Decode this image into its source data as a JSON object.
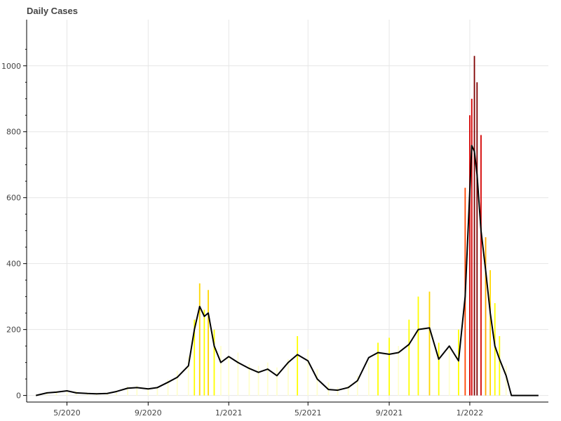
{
  "chart_data": {
    "type": "bar",
    "title": "Daily Cases",
    "xlabel": "",
    "ylabel": "",
    "grid": true,
    "x_range": [
      "2020-03-01",
      "2022-04-30"
    ],
    "ylim": [
      -20,
      1140
    ],
    "y_ticks": [
      0,
      200,
      400,
      600,
      800,
      1000
    ],
    "x_ticks": [
      {
        "date": "2020-05-01",
        "label": "5/2020"
      },
      {
        "date": "2020-09-01",
        "label": "9/2020"
      },
      {
        "date": "2021-01-01",
        "label": "1/2021"
      },
      {
        "date": "2021-05-01",
        "label": "5/2021"
      },
      {
        "date": "2021-09-01",
        "label": "9/2021"
      },
      {
        "date": "2022-01-01",
        "label": "1/2022"
      }
    ],
    "bar_colormap": [
      "#ffffcc",
      "#ffff00",
      "#ffd700",
      "#ffa500",
      "#ff4500",
      "#d40000",
      "#800000"
    ],
    "series": [
      {
        "type": "bar",
        "points": [
          [
            "2020-03-15",
            2
          ],
          [
            "2020-04-01",
            8
          ],
          [
            "2020-04-15",
            12
          ],
          [
            "2020-05-01",
            10
          ],
          [
            "2020-05-15",
            14
          ],
          [
            "2020-06-01",
            6
          ],
          [
            "2020-06-15",
            5
          ],
          [
            "2020-07-01",
            4
          ],
          [
            "2020-07-15",
            8
          ],
          [
            "2020-08-01",
            28
          ],
          [
            "2020-08-15",
            30
          ],
          [
            "2020-09-01",
            22
          ],
          [
            "2020-09-15",
            24
          ],
          [
            "2020-10-01",
            48
          ],
          [
            "2020-10-15",
            75
          ],
          [
            "2020-11-01",
            120
          ],
          [
            "2020-11-10",
            230
          ],
          [
            "2020-11-18",
            340
          ],
          [
            "2020-11-25",
            260
          ],
          [
            "2020-12-01",
            320
          ],
          [
            "2020-12-10",
            200
          ],
          [
            "2020-12-20",
            150
          ],
          [
            "2021-01-01",
            120
          ],
          [
            "2021-01-15",
            130
          ],
          [
            "2021-02-01",
            95
          ],
          [
            "2021-02-15",
            90
          ],
          [
            "2021-03-01",
            100
          ],
          [
            "2021-03-15",
            85
          ],
          [
            "2021-04-01",
            110
          ],
          [
            "2021-04-15",
            180
          ],
          [
            "2021-05-01",
            140
          ],
          [
            "2021-05-15",
            80
          ],
          [
            "2021-06-01",
            40
          ],
          [
            "2021-06-15",
            25
          ],
          [
            "2021-07-01",
            30
          ],
          [
            "2021-07-15",
            60
          ],
          [
            "2021-08-01",
            100
          ],
          [
            "2021-08-15",
            160
          ],
          [
            "2021-09-01",
            175
          ],
          [
            "2021-09-15",
            150
          ],
          [
            "2021-10-01",
            230
          ],
          [
            "2021-10-15",
            300
          ],
          [
            "2021-11-01",
            315
          ],
          [
            "2021-11-15",
            160
          ],
          [
            "2021-12-01",
            140
          ],
          [
            "2021-12-15",
            200
          ],
          [
            "2021-12-25",
            630
          ],
          [
            "2022-01-01",
            850
          ],
          [
            "2022-01-04",
            900
          ],
          [
            "2022-01-08",
            1030
          ],
          [
            "2022-01-12",
            950
          ],
          [
            "2022-01-18",
            790
          ],
          [
            "2022-01-25",
            480
          ],
          [
            "2022-02-01",
            380
          ],
          [
            "2022-02-08",
            280
          ],
          [
            "2022-02-15",
            180
          ],
          [
            "2022-02-25",
            90
          ],
          [
            "2022-03-05",
            0
          ],
          [
            "2022-03-20",
            0
          ],
          [
            "2022-04-15",
            0
          ]
        ]
      },
      {
        "type": "line",
        "color": "#000000",
        "points": [
          [
            "2020-03-15",
            0
          ],
          [
            "2020-04-01",
            8
          ],
          [
            "2020-04-15",
            10
          ],
          [
            "2020-05-01",
            14
          ],
          [
            "2020-05-15",
            8
          ],
          [
            "2020-06-01",
            6
          ],
          [
            "2020-06-15",
            5
          ],
          [
            "2020-07-01",
            6
          ],
          [
            "2020-07-15",
            12
          ],
          [
            "2020-08-01",
            22
          ],
          [
            "2020-08-15",
            24
          ],
          [
            "2020-09-01",
            20
          ],
          [
            "2020-09-15",
            24
          ],
          [
            "2020-10-01",
            40
          ],
          [
            "2020-10-15",
            55
          ],
          [
            "2020-11-01",
            90
          ],
          [
            "2020-11-10",
            200
          ],
          [
            "2020-11-18",
            270
          ],
          [
            "2020-11-25",
            240
          ],
          [
            "2020-12-01",
            250
          ],
          [
            "2020-12-10",
            150
          ],
          [
            "2020-12-20",
            100
          ],
          [
            "2021-01-01",
            118
          ],
          [
            "2021-01-15",
            100
          ],
          [
            "2021-02-01",
            82
          ],
          [
            "2021-02-15",
            70
          ],
          [
            "2021-03-01",
            80
          ],
          [
            "2021-03-15",
            60
          ],
          [
            "2021-04-01",
            100
          ],
          [
            "2021-04-15",
            124
          ],
          [
            "2021-05-01",
            105
          ],
          [
            "2021-05-15",
            50
          ],
          [
            "2021-06-01",
            18
          ],
          [
            "2021-06-15",
            16
          ],
          [
            "2021-07-01",
            24
          ],
          [
            "2021-07-15",
            45
          ],
          [
            "2021-08-01",
            115
          ],
          [
            "2021-08-15",
            130
          ],
          [
            "2021-09-01",
            125
          ],
          [
            "2021-09-15",
            130
          ],
          [
            "2021-10-01",
            155
          ],
          [
            "2021-10-15",
            200
          ],
          [
            "2021-11-01",
            205
          ],
          [
            "2021-11-15",
            110
          ],
          [
            "2021-12-01",
            150
          ],
          [
            "2021-12-15",
            105
          ],
          [
            "2021-12-25",
            300
          ],
          [
            "2022-01-01",
            620
          ],
          [
            "2022-01-04",
            758
          ],
          [
            "2022-01-08",
            740
          ],
          [
            "2022-01-12",
            670
          ],
          [
            "2022-01-18",
            500
          ],
          [
            "2022-01-25",
            380
          ],
          [
            "2022-02-01",
            250
          ],
          [
            "2022-02-08",
            150
          ],
          [
            "2022-02-15",
            110
          ],
          [
            "2022-02-25",
            60
          ],
          [
            "2022-03-05",
            0
          ],
          [
            "2022-03-20",
            0
          ],
          [
            "2022-04-15",
            0
          ]
        ]
      }
    ]
  }
}
